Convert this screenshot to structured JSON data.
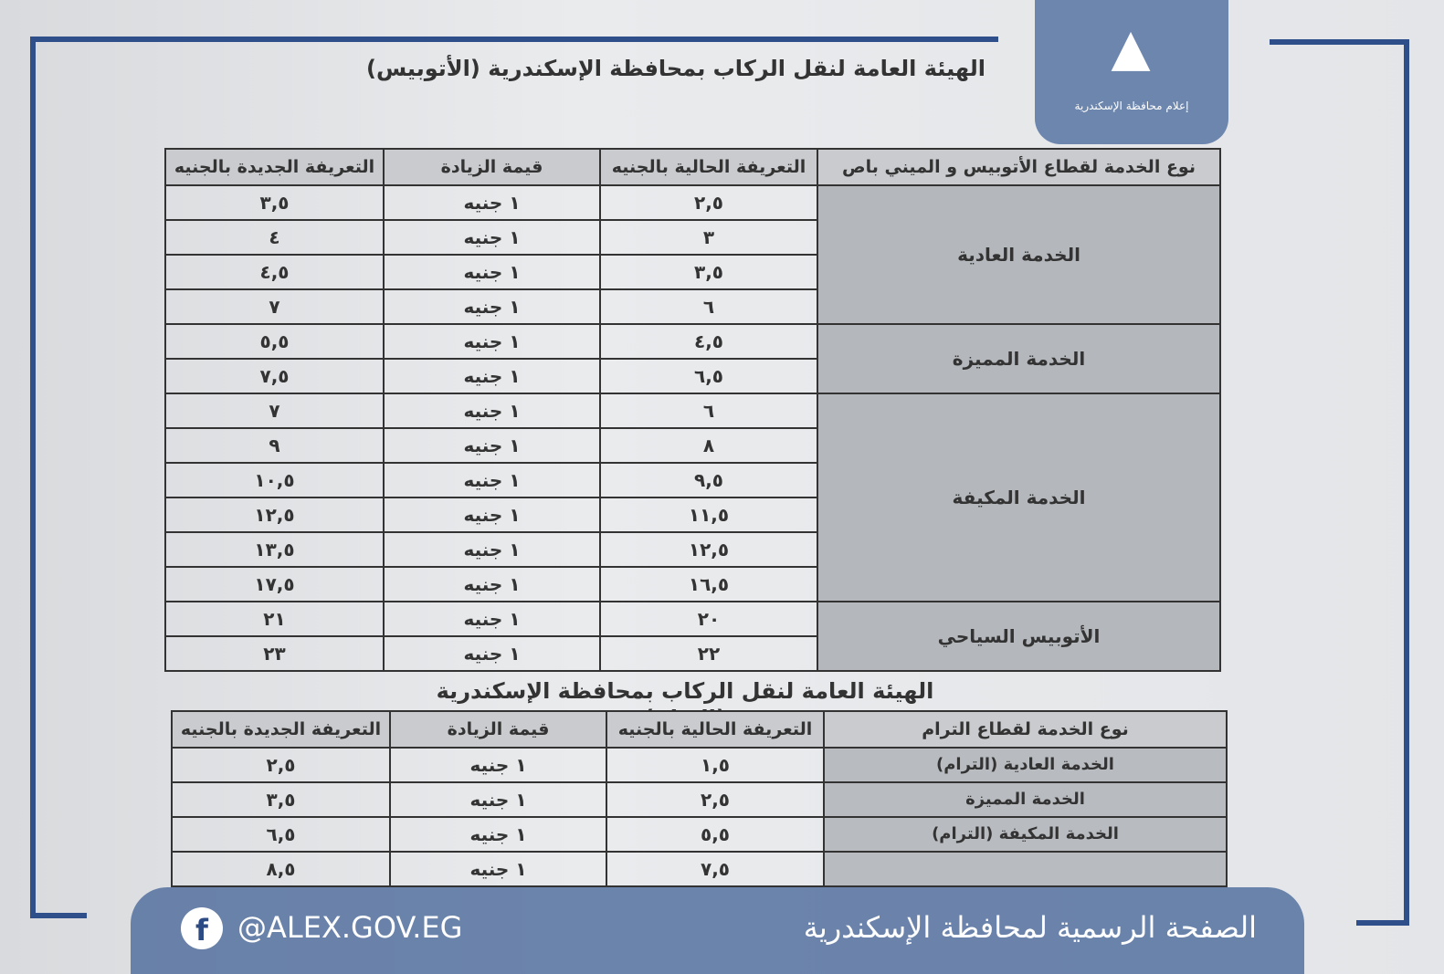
{
  "bus_table": {
    "title": "الهيئة العامة لنقل الركاب بمحافظة الإسكندرية (الأتوبيس)",
    "headers": [
      "نوع الخدمة لقطاع الأتوبيس و الميني باص",
      "التعريفة الحالية بالجنيه",
      "قيمة الزيادة",
      "التعريفة الجديدة بالجنيه"
    ],
    "groups": [
      {
        "type": "الخدمة العادية",
        "rows": [
          [
            "٢,٥",
            "١ جنيه",
            "٣,٥"
          ],
          [
            "٣",
            "١ جنيه",
            "٤"
          ],
          [
            "٣,٥",
            "١ جنيه",
            "٤,٥"
          ],
          [
            "٦",
            "١ جنيه",
            "٧"
          ]
        ]
      },
      {
        "type": "الخدمة المميزة",
        "rows": [
          [
            "٤,٥",
            "١ جنيه",
            "٥,٥"
          ],
          [
            "٦,٥",
            "١ جنيه",
            "٧,٥"
          ]
        ]
      },
      {
        "type": "الخدمة المكيفة",
        "rows": [
          [
            "٦",
            "١ جنيه",
            "٧"
          ],
          [
            "٨",
            "١ جنيه",
            "٩"
          ],
          [
            "٩,٥",
            "١ جنيه",
            "١٠,٥"
          ],
          [
            "١١,٥",
            "١ جنيه",
            "١٢,٥"
          ],
          [
            "١٢,٥",
            "١ جنيه",
            "١٣,٥"
          ],
          [
            "١٦,٥",
            "١ جنيه",
            "١٧,٥"
          ]
        ]
      },
      {
        "type": "الأتوبيس السياحي",
        "rows": [
          [
            "٢٠",
            "١ جنيه",
            "٢١"
          ],
          [
            "٢٢",
            "١ جنيه",
            "٢٣"
          ]
        ]
      }
    ]
  },
  "tram_table": {
    "title": "الهيئة العامة لنقل الركاب بمحافظة الإسكندرية (الترام)",
    "headers": [
      "نوع الخدمة لقطاع الترام",
      "التعريفة الحالية بالجنيه",
      "قيمة الزيادة",
      "التعريفة الجديدة بالجنيه"
    ],
    "rows": [
      {
        "type": "الخدمة العادية (الترام)",
        "values": [
          "١,٥",
          "١ جنيه",
          "٢,٥"
        ]
      },
      {
        "type": "الخدمة المميزة",
        "values": [
          "٢,٥",
          "١ جنيه",
          "٣,٥"
        ]
      },
      {
        "type": "الخدمة المكيفة (الترام)",
        "values": [
          "٥,٥",
          "١ جنيه",
          "٦,٥"
        ]
      },
      {
        "type": "",
        "values": [
          "٧,٥",
          "١ جنيه",
          "٨,٥"
        ]
      }
    ]
  },
  "logo": {
    "text": "إعلام محافظة الإسكندرية"
  },
  "footer": {
    "handle": "@ALEX.GOV.EG",
    "official_page": "الصفحة الرسمية لمحافظة الإسكندرية",
    "icon": "facebook-icon"
  },
  "colors": {
    "frame": "#2f4f8a",
    "overlay": "#48669a"
  }
}
